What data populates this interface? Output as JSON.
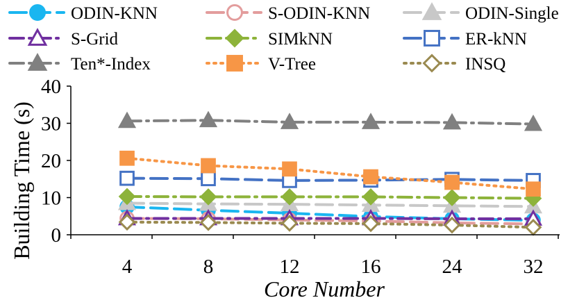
{
  "chart_data": {
    "type": "line",
    "title": "",
    "xlabel": "Core Number",
    "ylabel": "Building Time (s)",
    "categories": [
      "4",
      "8",
      "12",
      "16",
      "24",
      "32"
    ],
    "yticks": [
      "0",
      "10",
      "20",
      "30",
      "40"
    ],
    "ylim": [
      0,
      40
    ],
    "grid": false,
    "legend_position": "top",
    "series": [
      {
        "name": "ODIN-KNN",
        "values": [
          7.5,
          6.6,
          5.8,
          4.9,
          4.3,
          3.9
        ],
        "color": "#1ab6f0",
        "dash": "long-dash",
        "marker": "circle",
        "filled": true
      },
      {
        "name": "S-ODIN-KNN",
        "values": [
          4.4,
          4.3,
          4.0,
          3.7,
          3.2,
          2.9
        ],
        "color": "#e39d9d",
        "dash": "long-dash",
        "marker": "circle",
        "filled": false
      },
      {
        "name": "ODIN-Single",
        "values": [
          8.5,
          8.3,
          8.2,
          8.0,
          7.8,
          7.6
        ],
        "color": "#c8c8c8",
        "dash": "long-dash",
        "marker": "triangle",
        "filled": true
      },
      {
        "name": "S-Grid",
        "values": [
          4.4,
          4.4,
          4.4,
          4.4,
          4.3,
          4.3
        ],
        "color": "#7030a0",
        "dash": "long-dash-dot",
        "marker": "triangle",
        "filled": false
      },
      {
        "name": "SIMkNN",
        "values": [
          10.3,
          10.2,
          10.2,
          10.2,
          10.0,
          9.8
        ],
        "color": "#8db33a",
        "dash": "long-dash-dot",
        "marker": "diamond",
        "filled": true
      },
      {
        "name": "ER-kNN",
        "values": [
          15.2,
          15.1,
          14.6,
          14.7,
          14.9,
          14.6
        ],
        "color": "#4472c4",
        "dash": "long-dash",
        "marker": "square",
        "filled": false
      },
      {
        "name": "Ten*-Index",
        "values": [
          30.6,
          30.8,
          30.3,
          30.3,
          30.2,
          29.8
        ],
        "color": "#808080",
        "dash": "long-dash-dot",
        "marker": "triangle",
        "filled": true
      },
      {
        "name": "V-Tree",
        "values": [
          20.6,
          18.6,
          17.7,
          15.6,
          14.1,
          12.3
        ],
        "color": "#f79646",
        "dash": "dot",
        "marker": "square",
        "filled": true
      },
      {
        "name": "INSQ",
        "values": [
          3.4,
          3.3,
          3.1,
          3.0,
          2.6,
          2.0
        ],
        "color": "#9a8a50",
        "dash": "dot",
        "marker": "diamond",
        "filled": false
      }
    ]
  }
}
